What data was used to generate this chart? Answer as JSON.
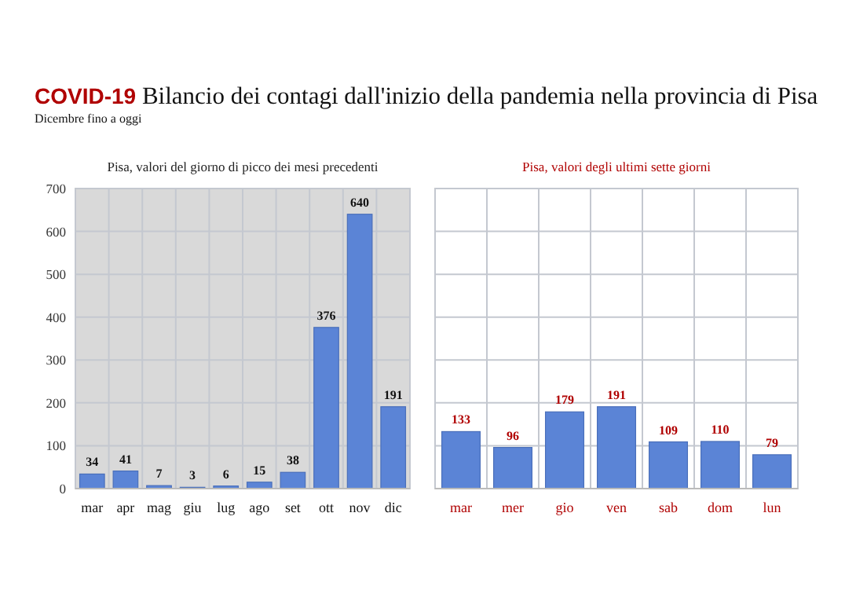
{
  "chart_data": [
    {
      "type": "other",
      "title": "COVID-19 Bilancio dei contagi dall'inizio della pandemia nella provincia di Pisa",
      "subtitle": "Dicembre fino a oggi"
    },
    {
      "type": "bar",
      "title": "Pisa, valori del giorno di picco dei mesi precedenti",
      "categories": [
        "mar",
        "apr",
        "mag",
        "giu",
        "lug",
        "ago",
        "set",
        "ott",
        "nov",
        "dic"
      ],
      "values": [
        34,
        41,
        7,
        3,
        6,
        15,
        38,
        376,
        640,
        191
      ],
      "color": "#5b84d6",
      "ylim": [
        0,
        700
      ],
      "yticks": [
        0,
        100,
        200,
        300,
        400,
        500,
        600,
        700
      ],
      "grid": true,
      "data_labels": true
    },
    {
      "type": "bar",
      "title": "Pisa, valori degli ultimi sette giorni",
      "categories": [
        "mar",
        "mer",
        "gio",
        "ven",
        "sab",
        "dom",
        "lun"
      ],
      "values": [
        133,
        96,
        179,
        191,
        109,
        110,
        79
      ],
      "color": "#5b84d6",
      "ylim": [
        0,
        700
      ],
      "yticks": [
        0,
        100,
        200,
        300,
        400,
        500,
        600,
        700
      ],
      "grid": true,
      "data_labels": true,
      "tick_labels": "x"
    }
  ]
}
